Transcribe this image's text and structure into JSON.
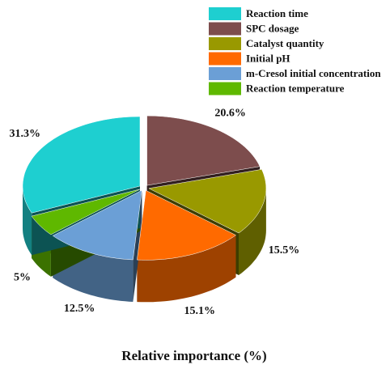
{
  "chart_data": {
    "type": "pie",
    "title": "Relative importance (%)",
    "categories": [
      "Reaction time",
      "SPC dosage",
      "Catalyst quantity",
      "Initial pH",
      "m-Cresol initial concentration",
      "Reaction temperature"
    ],
    "values": [
      31.3,
      20.6,
      15.5,
      15.1,
      12.5,
      5
    ],
    "value_labels": [
      "31.3%",
      "20.6%",
      "15.5%",
      "15.1%",
      "12.5%",
      "5%"
    ],
    "colors": [
      "#1ecfd0",
      "#7d4d4d",
      "#999900",
      "#ff6a00",
      "#6b9fd6",
      "#5fb800"
    ]
  }
}
